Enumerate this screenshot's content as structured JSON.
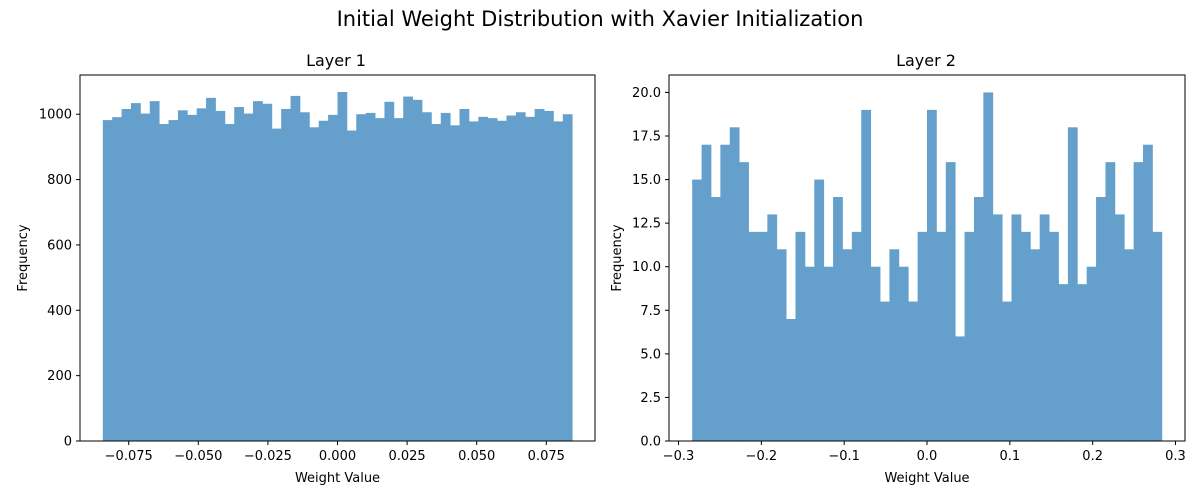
{
  "figure": {
    "title": "Initial Weight Distribution with Xavier Initialization",
    "bar_color": "#64a0cb"
  },
  "chart_data": [
    {
      "type": "bar",
      "title": "Layer 1",
      "xlabel": "Weight Value",
      "ylabel": "Frequency",
      "xlim": [
        -0.0925,
        0.0925
      ],
      "ylim": [
        0,
        1120
      ],
      "bin_range": [
        -0.0843,
        0.0843
      ],
      "xticks": [
        -0.075,
        -0.05,
        -0.025,
        0.0,
        0.025,
        0.05,
        0.075
      ],
      "xtick_labels": [
        "−0.075",
        "−0.050",
        "−0.025",
        "0.000",
        "0.025",
        "0.050",
        "0.075"
      ],
      "yticks": [
        0,
        200,
        400,
        600,
        800,
        1000
      ],
      "ytick_labels": [
        "0",
        "200",
        "400",
        "600",
        "800",
        "1000"
      ],
      "values": [
        982,
        991,
        1016,
        1034,
        1002,
        1040,
        970,
        982,
        1012,
        998,
        1018,
        1050,
        1010,
        970,
        1022,
        1002,
        1040,
        1032,
        956,
        1016,
        1056,
        1006,
        960,
        980,
        998,
        1068,
        950,
        1000,
        1004,
        988,
        1038,
        988,
        1054,
        1044,
        1006,
        970,
        1004,
        966,
        1016,
        978,
        992,
        988,
        980,
        996,
        1006,
        992,
        1016,
        1010,
        978,
        1000
      ]
    },
    {
      "type": "bar",
      "title": "Layer 2",
      "xlabel": "Weight Value",
      "ylabel": "Frequency",
      "xlim": [
        -0.3115,
        0.3115
      ],
      "ylim": [
        0,
        21
      ],
      "bin_range": [
        -0.2835,
        0.2835
      ],
      "xticks": [
        -0.3,
        -0.2,
        -0.1,
        0.0,
        0.1,
        0.2,
        0.3
      ],
      "xtick_labels": [
        "−0.3",
        "−0.2",
        "−0.1",
        "0.0",
        "0.1",
        "0.2",
        "0.3"
      ],
      "yticks": [
        0,
        2.5,
        5,
        7.5,
        10,
        12.5,
        15,
        17.5,
        20
      ],
      "ytick_labels": [
        "0.0",
        "2.5",
        "5.0",
        "7.5",
        "10.0",
        "12.5",
        "15.0",
        "17.5",
        "20.0"
      ],
      "values": [
        15,
        17,
        14,
        17,
        18,
        16,
        12,
        12,
        13,
        11,
        7,
        12,
        10,
        15,
        10,
        14,
        11,
        12,
        19,
        10,
        8,
        11,
        10,
        8,
        12,
        19,
        12,
        16,
        6,
        12,
        14,
        20,
        13,
        8,
        13,
        12,
        11,
        13,
        12,
        9,
        18,
        9,
        10,
        14,
        16,
        13,
        11,
        16,
        17,
        12
      ]
    }
  ]
}
